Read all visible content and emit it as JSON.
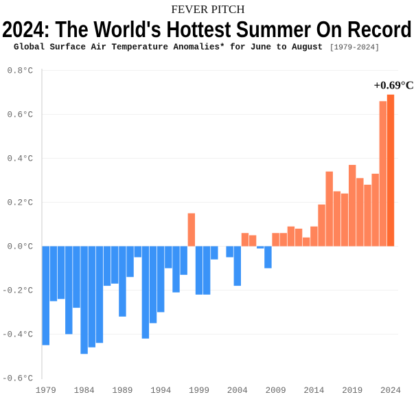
{
  "kicker": "FEVER PITCH",
  "title": "2024: The World's Hottest Summer On Record",
  "subtitle": "Global Surface Air Temperature Anomalies* for June to August",
  "subtitle_range": "[1979-2024]",
  "chart_data": {
    "type": "bar",
    "title": "2024: The World's Hottest Summer On Record",
    "subtitle": "Global Surface Air Temperature Anomalies* for June to August [1979-2024]",
    "xlabel": "",
    "ylabel": "",
    "ylim": [
      -0.6,
      0.8
    ],
    "yticks": [
      -0.6,
      -0.4,
      -0.2,
      0.0,
      0.2,
      0.4,
      0.6,
      0.8
    ],
    "ytick_labels": [
      "-0.6°C",
      "-0.4°C",
      "-0.2°C",
      "0.0°C",
      "0.2°C",
      "0.4°C",
      "0.6°C",
      "0.8°C"
    ],
    "xtick_labels": [
      "1979",
      "1984",
      "1989",
      "1994",
      "1999",
      "2004",
      "2009",
      "2014",
      "2019",
      "2024"
    ],
    "grid": true,
    "categories": [
      1979,
      1980,
      1981,
      1982,
      1983,
      1984,
      1985,
      1986,
      1987,
      1988,
      1989,
      1990,
      1991,
      1992,
      1993,
      1994,
      1995,
      1996,
      1997,
      1998,
      1999,
      2000,
      2001,
      2002,
      2003,
      2004,
      2005,
      2006,
      2007,
      2008,
      2009,
      2010,
      2011,
      2012,
      2013,
      2014,
      2015,
      2016,
      2017,
      2018,
      2019,
      2020,
      2021,
      2022,
      2023,
      2024
    ],
    "values": [
      -0.45,
      -0.25,
      -0.24,
      -0.4,
      -0.28,
      -0.49,
      -0.46,
      -0.44,
      -0.18,
      -0.17,
      -0.32,
      -0.14,
      -0.05,
      -0.42,
      -0.35,
      -0.3,
      -0.1,
      -0.21,
      -0.13,
      0.15,
      -0.22,
      -0.22,
      -0.06,
      0.0,
      -0.05,
      -0.18,
      0.06,
      0.05,
      -0.01,
      -0.1,
      0.06,
      0.06,
      0.09,
      0.08,
      0.04,
      0.09,
      0.19,
      0.34,
      0.25,
      0.24,
      0.37,
      0.31,
      0.28,
      0.33,
      0.66,
      0.69
    ],
    "annotation": "+0.69°C",
    "colors": {
      "negative": "#3a93f8",
      "positive": "#ff845a",
      "highlight": "#ff6a30"
    }
  }
}
